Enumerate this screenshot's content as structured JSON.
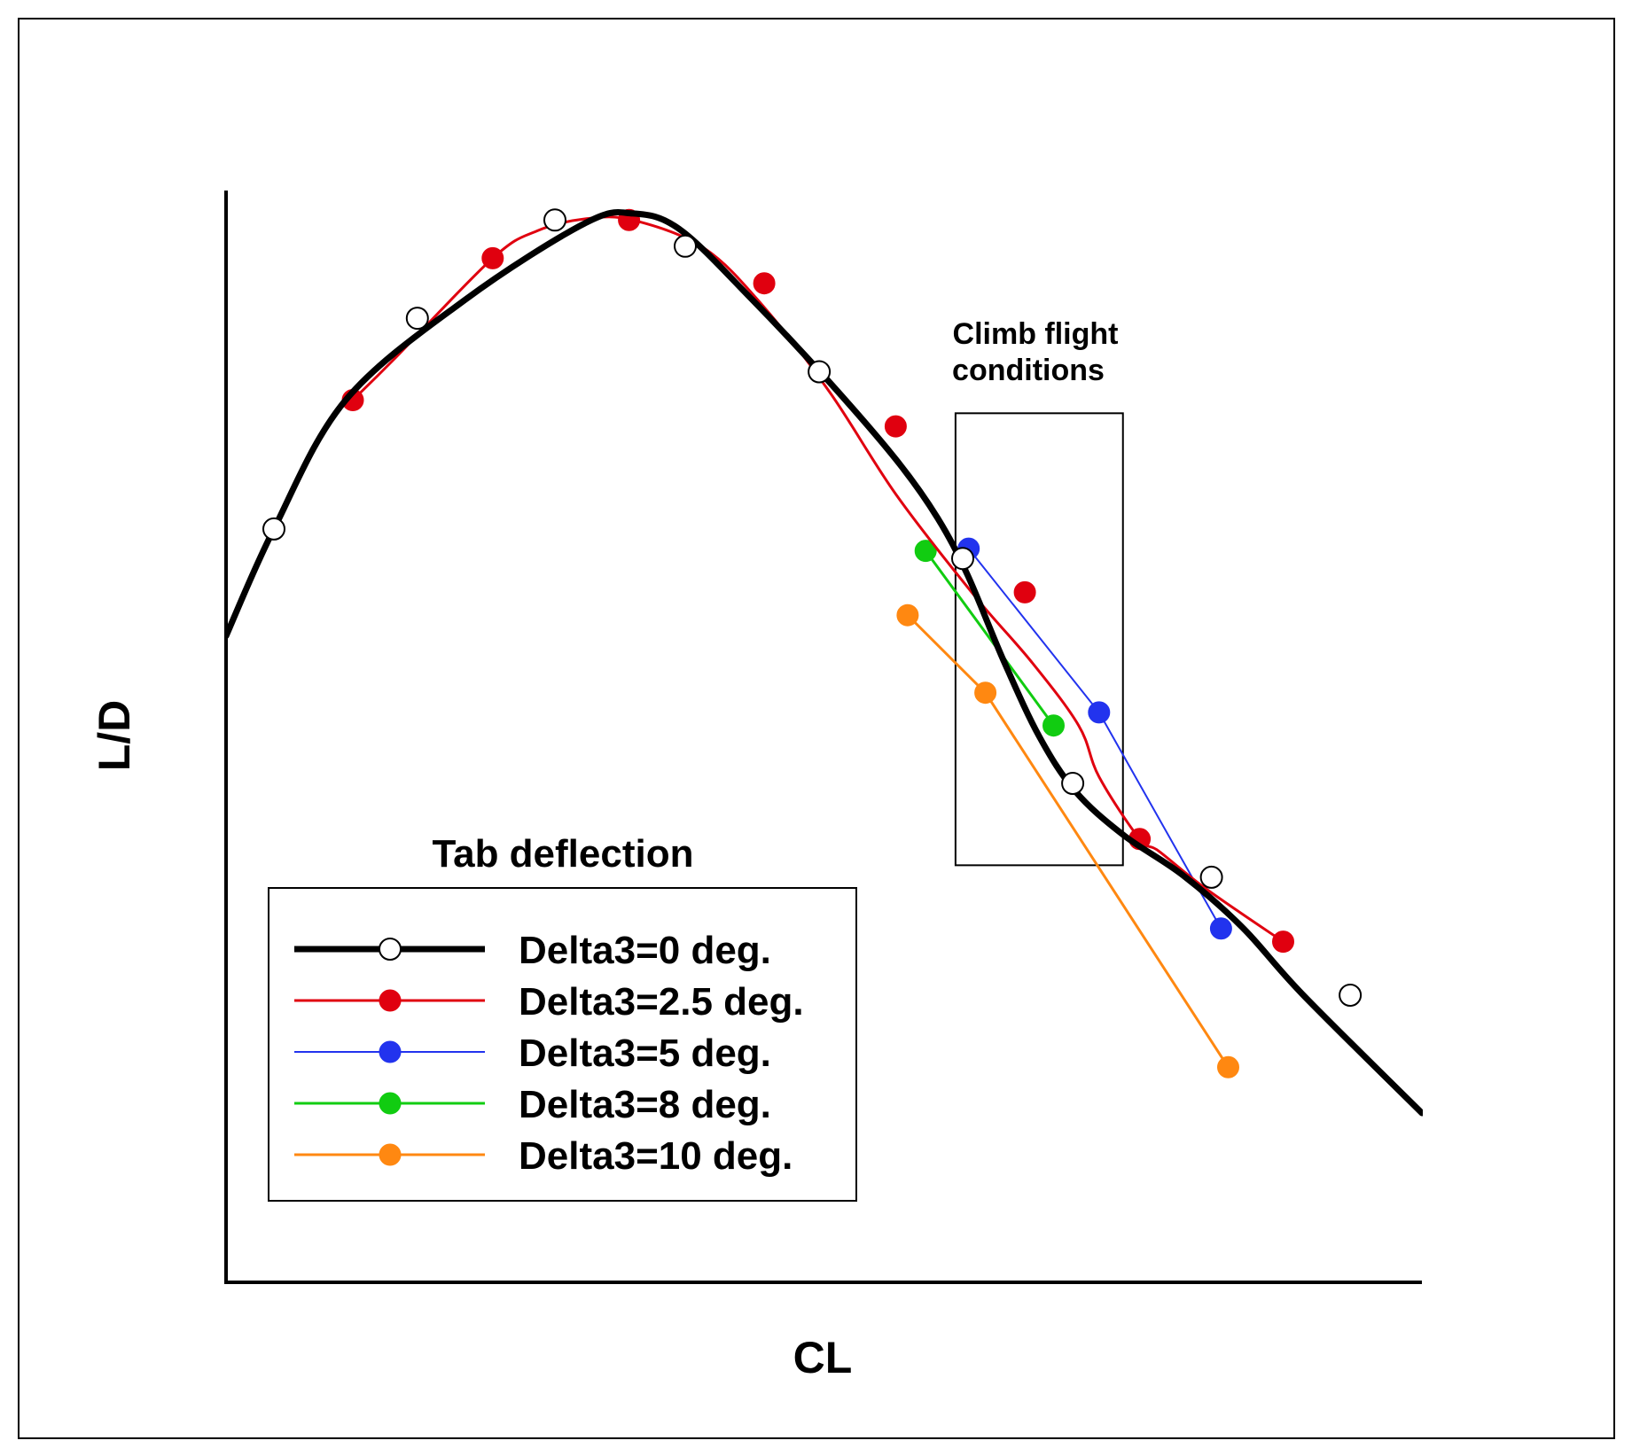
{
  "chart_data": {
    "type": "line",
    "title": "",
    "xlabel": "CL",
    "ylabel": "L/D",
    "xlim": [
      0,
      100
    ],
    "ylim": [
      0,
      100
    ],
    "grid": false,
    "axis_ticks": false,
    "legend": {
      "title": "Tab deflection",
      "placement": "bottom-left"
    },
    "annotation": {
      "text_lines": [
        "Climb flight",
        "conditions"
      ],
      "region": {
        "x": [
          61,
          75
        ],
        "y": [
          38.2,
          79.6
        ]
      }
    },
    "series": [
      {
        "name": "Delta3=0 deg.",
        "color": "#000000",
        "marker": "open-circle",
        "line_width": 7,
        "curve": [
          [
            0,
            59.2
          ],
          [
            4,
            69
          ],
          [
            10,
            80.8
          ],
          [
            20,
            90
          ],
          [
            30,
            97
          ],
          [
            34,
            97.9
          ],
          [
            38,
            96.4
          ],
          [
            44,
            90
          ],
          [
            50,
            83
          ],
          [
            56,
            75.4
          ],
          [
            59.5,
            70
          ],
          [
            62,
            64.8
          ],
          [
            65,
            57
          ],
          [
            68,
            50
          ],
          [
            71,
            45
          ],
          [
            75,
            41
          ],
          [
            80,
            37.3
          ],
          [
            85,
            32.5
          ],
          [
            90,
            26.4
          ],
          [
            100,
            15.5
          ]
        ],
        "points": [
          [
            4,
            69
          ],
          [
            16,
            88.3
          ],
          [
            27.5,
            97.3
          ],
          [
            38.4,
            94.9
          ],
          [
            49.6,
            83.4
          ],
          [
            61.6,
            66.3
          ],
          [
            70.8,
            45.7
          ],
          [
            82.4,
            37.1
          ],
          [
            94,
            26.3
          ]
        ]
      },
      {
        "name": "Delta3=2.5 deg.",
        "color": "#e0000f",
        "marker": "filled-circle",
        "line_width": 3,
        "curve": [
          [
            10.6,
            80.8
          ],
          [
            14,
            84.5
          ],
          [
            22.3,
            93.8
          ],
          [
            26,
            96.3
          ],
          [
            30,
            97.4
          ],
          [
            34,
            97.3
          ],
          [
            40,
            94.7
          ],
          [
            45,
            89.3
          ],
          [
            50.5,
            81.5
          ],
          [
            56,
            72.2
          ],
          [
            62.5,
            63
          ],
          [
            67.3,
            56.9
          ],
          [
            71.3,
            51
          ],
          [
            73,
            46.3
          ],
          [
            76.4,
            40.6
          ],
          [
            78,
            39.5
          ],
          [
            82,
            36
          ],
          [
            88.4,
            31.2
          ]
        ],
        "points": [
          [
            10.6,
            80.8
          ],
          [
            22.3,
            93.8
          ],
          [
            33.7,
            97.3
          ],
          [
            45,
            91.5
          ],
          [
            56,
            78.4
          ],
          [
            66.8,
            63.2
          ],
          [
            76.4,
            40.6
          ],
          [
            88.4,
            31.2
          ]
        ]
      },
      {
        "name": "Delta3=5 deg.",
        "color": "#2233ee",
        "marker": "filled-circle",
        "line_width": 2,
        "points": [
          [
            62.1,
            67.2
          ],
          [
            73,
            52.2
          ],
          [
            83.2,
            32.4
          ]
        ]
      },
      {
        "name": "Delta3=8 deg.",
        "color": "#11cc11",
        "marker": "filled-circle",
        "line_width": 3,
        "points": [
          [
            58.5,
            67
          ],
          [
            69.2,
            51
          ]
        ]
      },
      {
        "name": "Delta3=10 deg.",
        "color": "#ff8811",
        "marker": "filled-circle",
        "line_width": 3,
        "points": [
          [
            57,
            61.1
          ],
          [
            63.5,
            54
          ],
          [
            83.8,
            19.7
          ]
        ]
      }
    ]
  }
}
